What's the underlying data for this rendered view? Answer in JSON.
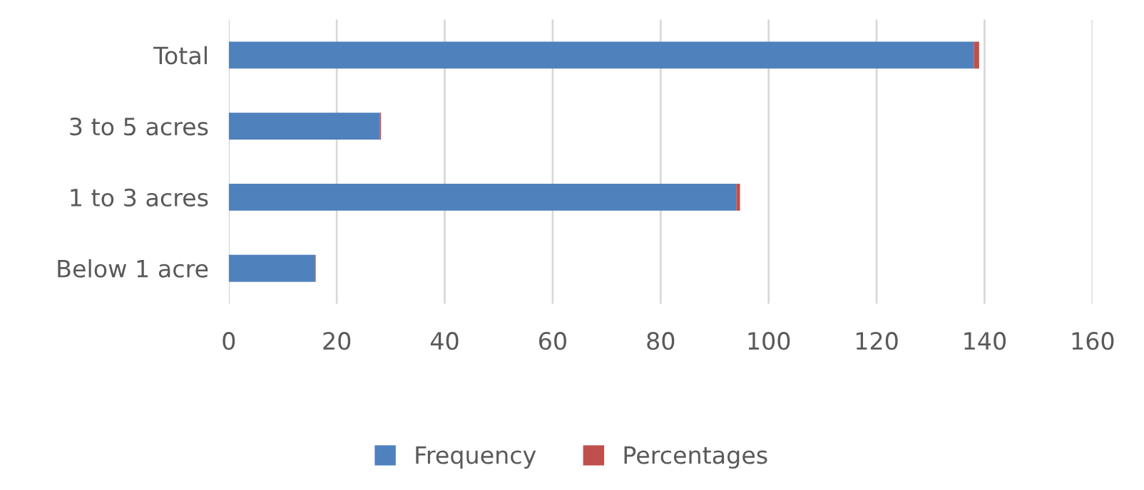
{
  "chart_data": {
    "type": "bar",
    "orientation": "horizontal",
    "stacked": true,
    "categories": [
      "Total",
      "3 to 5 acres",
      "1 to 3 acres",
      "Below 1 acre"
    ],
    "series": [
      {
        "name": "Frequency",
        "color": "#4f81bd",
        "values": [
          138,
          28,
          94,
          16
        ]
      },
      {
        "name": "Percentages",
        "color": "#c0504d",
        "values": [
          1,
          0.2,
          0.7,
          0.1
        ]
      }
    ],
    "xlim": [
      0,
      160
    ],
    "xticks": [
      0,
      20,
      40,
      60,
      80,
      100,
      120,
      140,
      160
    ],
    "grid": "x",
    "legend": "bottom"
  }
}
